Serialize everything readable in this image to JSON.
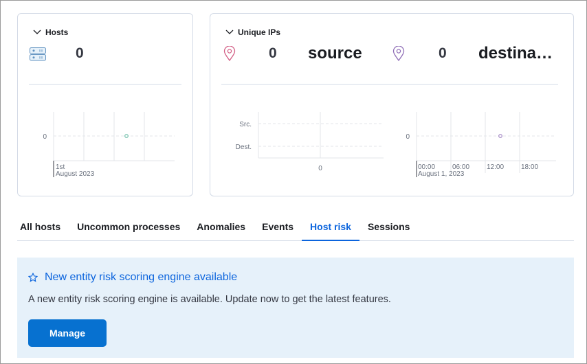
{
  "hosts": {
    "title": "Hosts",
    "count": "0",
    "icon": "server-icon",
    "chart": {
      "y_tick": "0",
      "x_tick_1": "1st",
      "x_tick_2": "August 2023"
    }
  },
  "unique_ips": {
    "title": "Unique IPs",
    "source": {
      "count": "0",
      "label": "source",
      "icon": "map-marker-icon",
      "color": "#d36086"
    },
    "destination": {
      "count": "0",
      "label": "destina…",
      "icon": "map-marker-icon",
      "color": "#9170b8"
    },
    "bar_chart": {
      "categories": [
        "Src.",
        "Dest."
      ],
      "x_tick": "0"
    },
    "area_chart": {
      "y_tick": "0",
      "x_ticks": [
        "00:00",
        "06:00",
        "12:00",
        "18:00"
      ],
      "x_date": "August 1, 2023"
    }
  },
  "tabs": [
    {
      "label": "All hosts"
    },
    {
      "label": "Uncommon processes"
    },
    {
      "label": "Anomalies"
    },
    {
      "label": "Events"
    },
    {
      "label": "Host risk",
      "active": true
    },
    {
      "label": "Sessions"
    }
  ],
  "callout": {
    "title": "New entity risk scoring engine available",
    "body": "A new entity risk scoring engine is available. Update now to get the latest features.",
    "button": "Manage",
    "icon": "star-icon"
  },
  "colors": {
    "accent": "#0b64dd",
    "callout_bg": "#e6f1fa",
    "hosts_point": "#54b399",
    "dest_point": "#9170b8"
  }
}
